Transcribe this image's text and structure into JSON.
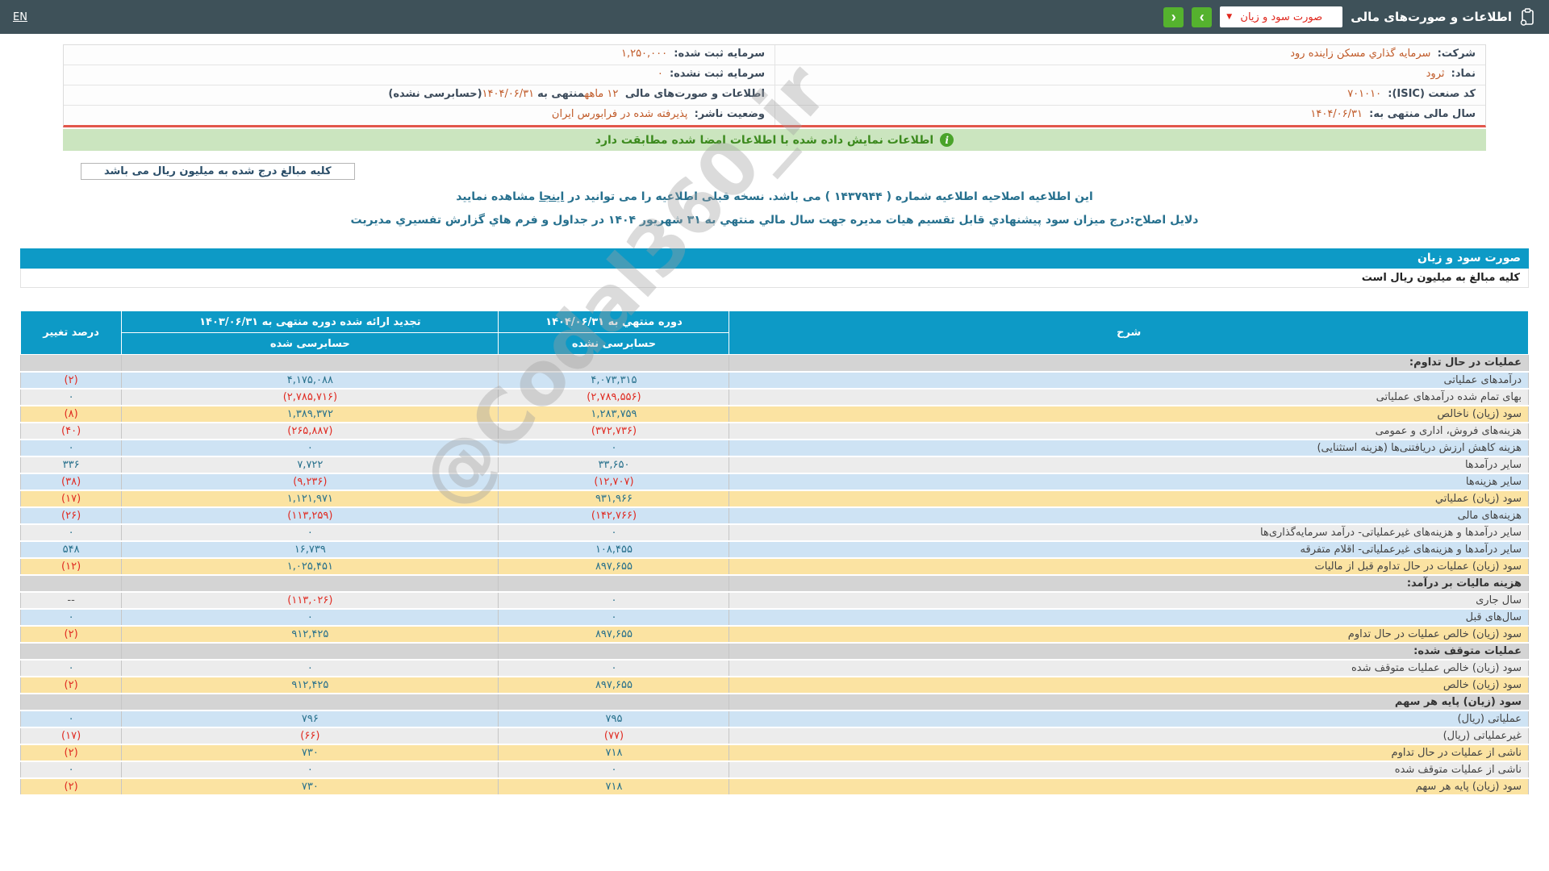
{
  "header": {
    "en_link": "EN",
    "title": "اطلاعات و صورت‌های مالی",
    "dropdown_value": "صورت سود و زیان",
    "next_glyph": "›",
    "prev_glyph": "‹",
    "caret_glyph": "▼",
    "bar_color": "#3e5159",
    "button_color": "#55b22e",
    "dropdown_text_color": "#e0261c"
  },
  "info": {
    "rows": [
      {
        "right_label": "شرکت:",
        "right_value": "سرمایه گذاري مسکن زاینده رود",
        "left_label": "سرمایه ثبت شده:",
        "left_value": "۱,۲۵۰,۰۰۰"
      },
      {
        "right_label": "نماد:",
        "right_value": "ثرود",
        "left_label": "سرمایه ثبت نشده:",
        "left_value": "۰"
      },
      {
        "right_label": "کد صنعت (ISIC):",
        "right_value": "۷۰۱۰۱۰",
        "left_parts": [
          "اطلاعات و صورت‌های مالی ",
          "۱۲ ماهه",
          "منتهی به",
          "۱۴۰۴/۰۶/۳۱",
          "(حسابرسی نشده)"
        ]
      },
      {
        "right_label": "سال مالی منتهی به:",
        "right_value": "۱۴۰۴/۰۶/۳۱",
        "left_label": "وضعیت ناشر:",
        "left_value": "پذیرفته شده در فرابورس ایران"
      }
    ]
  },
  "banner": {
    "message": "اطلاعات نمایش داده شده با اطلاعات امضا شده مطابقت دارد"
  },
  "amounts_note": "کلیه مبالغ درج شده به میلیون ریال می باشد",
  "revision_notice": {
    "before_link": "این اطلاعیه اصلاحیه اطلاعیه شماره ( ۱۴۳۷۹۴۴ ) می باشد. نسخه قبلی اطلاعیه را می توانید در ",
    "link": "اینجا",
    "after_link": " مشاهده نمایید"
  },
  "correction_reason": "دلایل اصلاح:درج میزان سود پیشنهادي قابل تقسیم هیات مدیره جهت سال مالي منتهي به ۳۱ شهریور ۱۴۰۴ در جداول و فرم هاي گزارش تفسیري مدیریت",
  "statement": {
    "title": "صورت سود و زیان",
    "units_note": "کلیه مبالغ به میلیون ریال است",
    "accent_color": "#0d9ac6"
  },
  "table": {
    "headers": {
      "desc": "شرح",
      "current_period": "دوره منتهي به ۱۴۰۴/۰۶/۳۱",
      "current_audit": "حسابرسی نشده",
      "restated_period": "تجدید ارائه شده دوره منتهی به ۱۴۰۳/۰۶/۳۱",
      "restated_audit": "حسابرسی شده",
      "change": "درصد تغییر"
    },
    "row_colors": {
      "blue": "#cee3f4",
      "gray": "#ececec",
      "yellow": "#fbe3a2",
      "section": "#d4d4d4",
      "positive_text": "#27708c",
      "negative_text": "#e02b22"
    },
    "rows": [
      {
        "variant": "section",
        "label": "عملیات در حال تداوم:"
      },
      {
        "variant": "blue",
        "label": "درآمدهای عملیاتی",
        "current": "۴,۰۷۳,۳۱۵",
        "restated": "۴,۱۷۵,۰۸۸",
        "change": "(۲)"
      },
      {
        "variant": "gray",
        "label": "بهای تمام شده درآمدهای عملیاتی",
        "current": "(۲,۷۸۹,۵۵۶)",
        "restated": "(۲,۷۸۵,۷۱۶)",
        "change": "۰"
      },
      {
        "variant": "yellow",
        "label": "سود (زیان) ناخالص",
        "current": "۱,۲۸۳,۷۵۹",
        "restated": "۱,۳۸۹,۳۷۲",
        "change": "(۸)"
      },
      {
        "variant": "gray",
        "label": "هزینه‌های فروش، اداری و عمومی",
        "current": "(۳۷۲,۷۳۶)",
        "restated": "(۲۶۵,۸۸۷)",
        "change": "(۴۰)"
      },
      {
        "variant": "blue",
        "label": "هزینه کاهش ارزش دریافتنی‌ها (هزینه استثنایی)",
        "current": "۰",
        "restated": "۰",
        "change": "۰"
      },
      {
        "variant": "gray",
        "label": "سایر درآمدها",
        "current": "۳۳,۶۵۰",
        "restated": "۷,۷۲۲",
        "change": "۳۳۶"
      },
      {
        "variant": "blue",
        "label": "سایر هزینه‌ها",
        "current": "(۱۲,۷۰۷)",
        "restated": "(۹,۲۳۶)",
        "change": "(۳۸)"
      },
      {
        "variant": "yellow",
        "label": "سود (زیان) عملیاتي",
        "current": "۹۳۱,۹۶۶",
        "restated": "۱,۱۲۱,۹۷۱",
        "change": "(۱۷)"
      },
      {
        "variant": "blue",
        "label": "هزینه‌های مالی",
        "current": "(۱۴۲,۷۶۶)",
        "restated": "(۱۱۳,۲۵۹)",
        "change": "(۲۶)"
      },
      {
        "variant": "gray",
        "label": "سایر درآمدها و هزینه‌های غیرعملیاتی- درآمد سرمایه‌گذاری‌ها",
        "current": "۰",
        "restated": "۰",
        "change": "۰"
      },
      {
        "variant": "blue",
        "label": "سایر درآمدها و هزینه‌های غیرعملیاتی- اقلام متفرقه",
        "current": "۱۰۸,۴۵۵",
        "restated": "۱۶,۷۳۹",
        "change": "۵۴۸"
      },
      {
        "variant": "yellow",
        "label": "سود (زیان) عملیات در حال تداوم قبل از مالیات",
        "current": "۸۹۷,۶۵۵",
        "restated": "۱,۰۲۵,۴۵۱",
        "change": "(۱۲)"
      },
      {
        "variant": "section",
        "label": "هزینه مالیات بر درآمد:"
      },
      {
        "variant": "gray",
        "label": "سال جاری",
        "current": "۰",
        "restated": "(۱۱۳,۰۲۶)",
        "change": "--"
      },
      {
        "variant": "blue",
        "label": "سال‌های قبل",
        "current": "۰",
        "restated": "۰",
        "change": "۰"
      },
      {
        "variant": "yellow",
        "label": "سود (زیان) خالص عملیات در حال تداوم",
        "current": "۸۹۷,۶۵۵",
        "restated": "۹۱۲,۴۲۵",
        "change": "(۲)"
      },
      {
        "variant": "section",
        "label": "عملیات متوقف شده:"
      },
      {
        "variant": "gray",
        "label": "سود (زیان) خالص عملیات متوقف شده",
        "current": "۰",
        "restated": "۰",
        "change": "۰"
      },
      {
        "variant": "yellow",
        "label": "سود (زیان) خالص",
        "current": "۸۹۷,۶۵۵",
        "restated": "۹۱۲,۴۲۵",
        "change": "(۲)"
      },
      {
        "variant": "section",
        "label": "سود (زیان) پایه هر سهم"
      },
      {
        "variant": "blue",
        "label": "عملیاتی (ریال)",
        "current": "۷۹۵",
        "restated": "۷۹۶",
        "change": "۰"
      },
      {
        "variant": "gray",
        "label": "غیرعملیاتی (ریال)",
        "current": "(۷۷)",
        "restated": "(۶۶)",
        "change": "(۱۷)"
      },
      {
        "variant": "yellow",
        "label": "ناشی از عملیات در حال تداوم",
        "current": "۷۱۸",
        "restated": "۷۳۰",
        "change": "(۲)"
      },
      {
        "variant": "gray",
        "label": "ناشی از عملیات متوقف شده",
        "current": "۰",
        "restated": "۰",
        "change": "۰"
      },
      {
        "variant": "yellow",
        "label": "سود (زیان) پایه هر سهم",
        "current": "۷۱۸",
        "restated": "۷۳۰",
        "change": "(۲)"
      }
    ]
  },
  "watermark": "@Codal360_ir"
}
